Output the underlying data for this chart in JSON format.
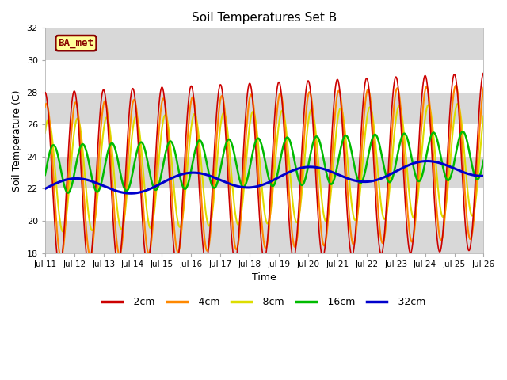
{
  "title": "Soil Temperatures Set B",
  "xlabel": "Time",
  "ylabel": "Soil Temperature (C)",
  "ylim": [
    18,
    32
  ],
  "xlim": [
    0,
    15
  ],
  "xtick_labels": [
    "Jul 11",
    "Jul 12",
    "Jul 13",
    "Jul 14",
    "Jul 15",
    "Jul 16",
    "Jul 17",
    "Jul 18",
    "Jul 19",
    "Jul 20",
    "Jul 21",
    "Jul 22",
    "Jul 23",
    "Jul 24",
    "Jul 25",
    "Jul 26"
  ],
  "ytick_values": [
    18,
    20,
    22,
    24,
    26,
    28,
    30,
    32
  ],
  "legend_labels": [
    "-2cm",
    "-4cm",
    "-8cm",
    "-16cm",
    "-32cm"
  ],
  "line_colors": [
    "#cc0000",
    "#ff8800",
    "#dddd00",
    "#00bb00",
    "#0000cc"
  ],
  "line_widths": [
    1.2,
    1.5,
    1.5,
    1.8,
    2.2
  ],
  "plot_bg_color": "#e0e0e0",
  "ba_met_label": "BA_met",
  "ba_met_bg": "#ffff99",
  "ba_met_border": "#880000",
  "ba_met_text_color": "#880000",
  "white_band_color": "#ffffff",
  "gray_band_color": "#e0e0e0"
}
